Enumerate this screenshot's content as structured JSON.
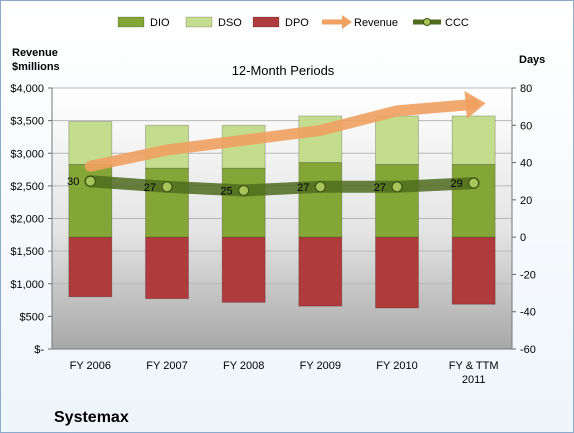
{
  "chart_data": {
    "type": "bar",
    "title": "12-Month Periods",
    "company": "Systemax",
    "y_left_label_line1": "Revenue",
    "y_left_label_line2": "$millions",
    "y_right_label": "Days",
    "categories": [
      {
        "line1": "FY 2006",
        "line2": ""
      },
      {
        "line1": "FY 2007",
        "line2": ""
      },
      {
        "line1": "FY 2008",
        "line2": ""
      },
      {
        "line1": "FY 2009",
        "line2": ""
      },
      {
        "line1": "FY 2010",
        "line2": ""
      },
      {
        "line1": "FY & TTM",
        "line2": "2011"
      }
    ],
    "left_axis": {
      "min": 0,
      "max": 4000,
      "step": 500,
      "ticks": [
        "$-",
        "$500",
        "$1,000",
        "$1,500",
        "$2,000",
        "$2,500",
        "$3,000",
        "$3,500",
        "$4,000"
      ]
    },
    "right_axis": {
      "min": -60,
      "max": 80,
      "step": 20,
      "ticks": [
        "-60",
        "-40",
        "-20",
        "0",
        "20",
        "40",
        "60",
        "80"
      ]
    },
    "legend": [
      "DIO",
      "DSO",
      "DPO",
      "Revenue",
      "CCC"
    ],
    "series": [
      {
        "name": "DIO",
        "axis": "right",
        "values": [
          39,
          37,
          37,
          40,
          39,
          39
        ]
      },
      {
        "name": "DSO",
        "axis": "right",
        "values": [
          23,
          23,
          23,
          25,
          26,
          26
        ]
      },
      {
        "name": "DPO",
        "axis": "right",
        "values": [
          -32,
          -33,
          -35,
          -37,
          -38,
          -36
        ]
      },
      {
        "name": "Revenue",
        "axis": "left",
        "values": [
          2800,
          3050,
          3200,
          3350,
          3650,
          3750
        ]
      },
      {
        "name": "CCC",
        "axis": "right",
        "values": [
          30,
          27,
          25,
          27,
          27,
          29
        ],
        "labels": [
          "30",
          "27",
          "25",
          "27",
          "27",
          "29"
        ]
      }
    ],
    "colors": {
      "DIO": "#84a637",
      "DSO": "#c4dc8e",
      "DPO": "#b03b3c",
      "Revenue": "#f0a060",
      "CCC": "#4e6b1e"
    }
  }
}
